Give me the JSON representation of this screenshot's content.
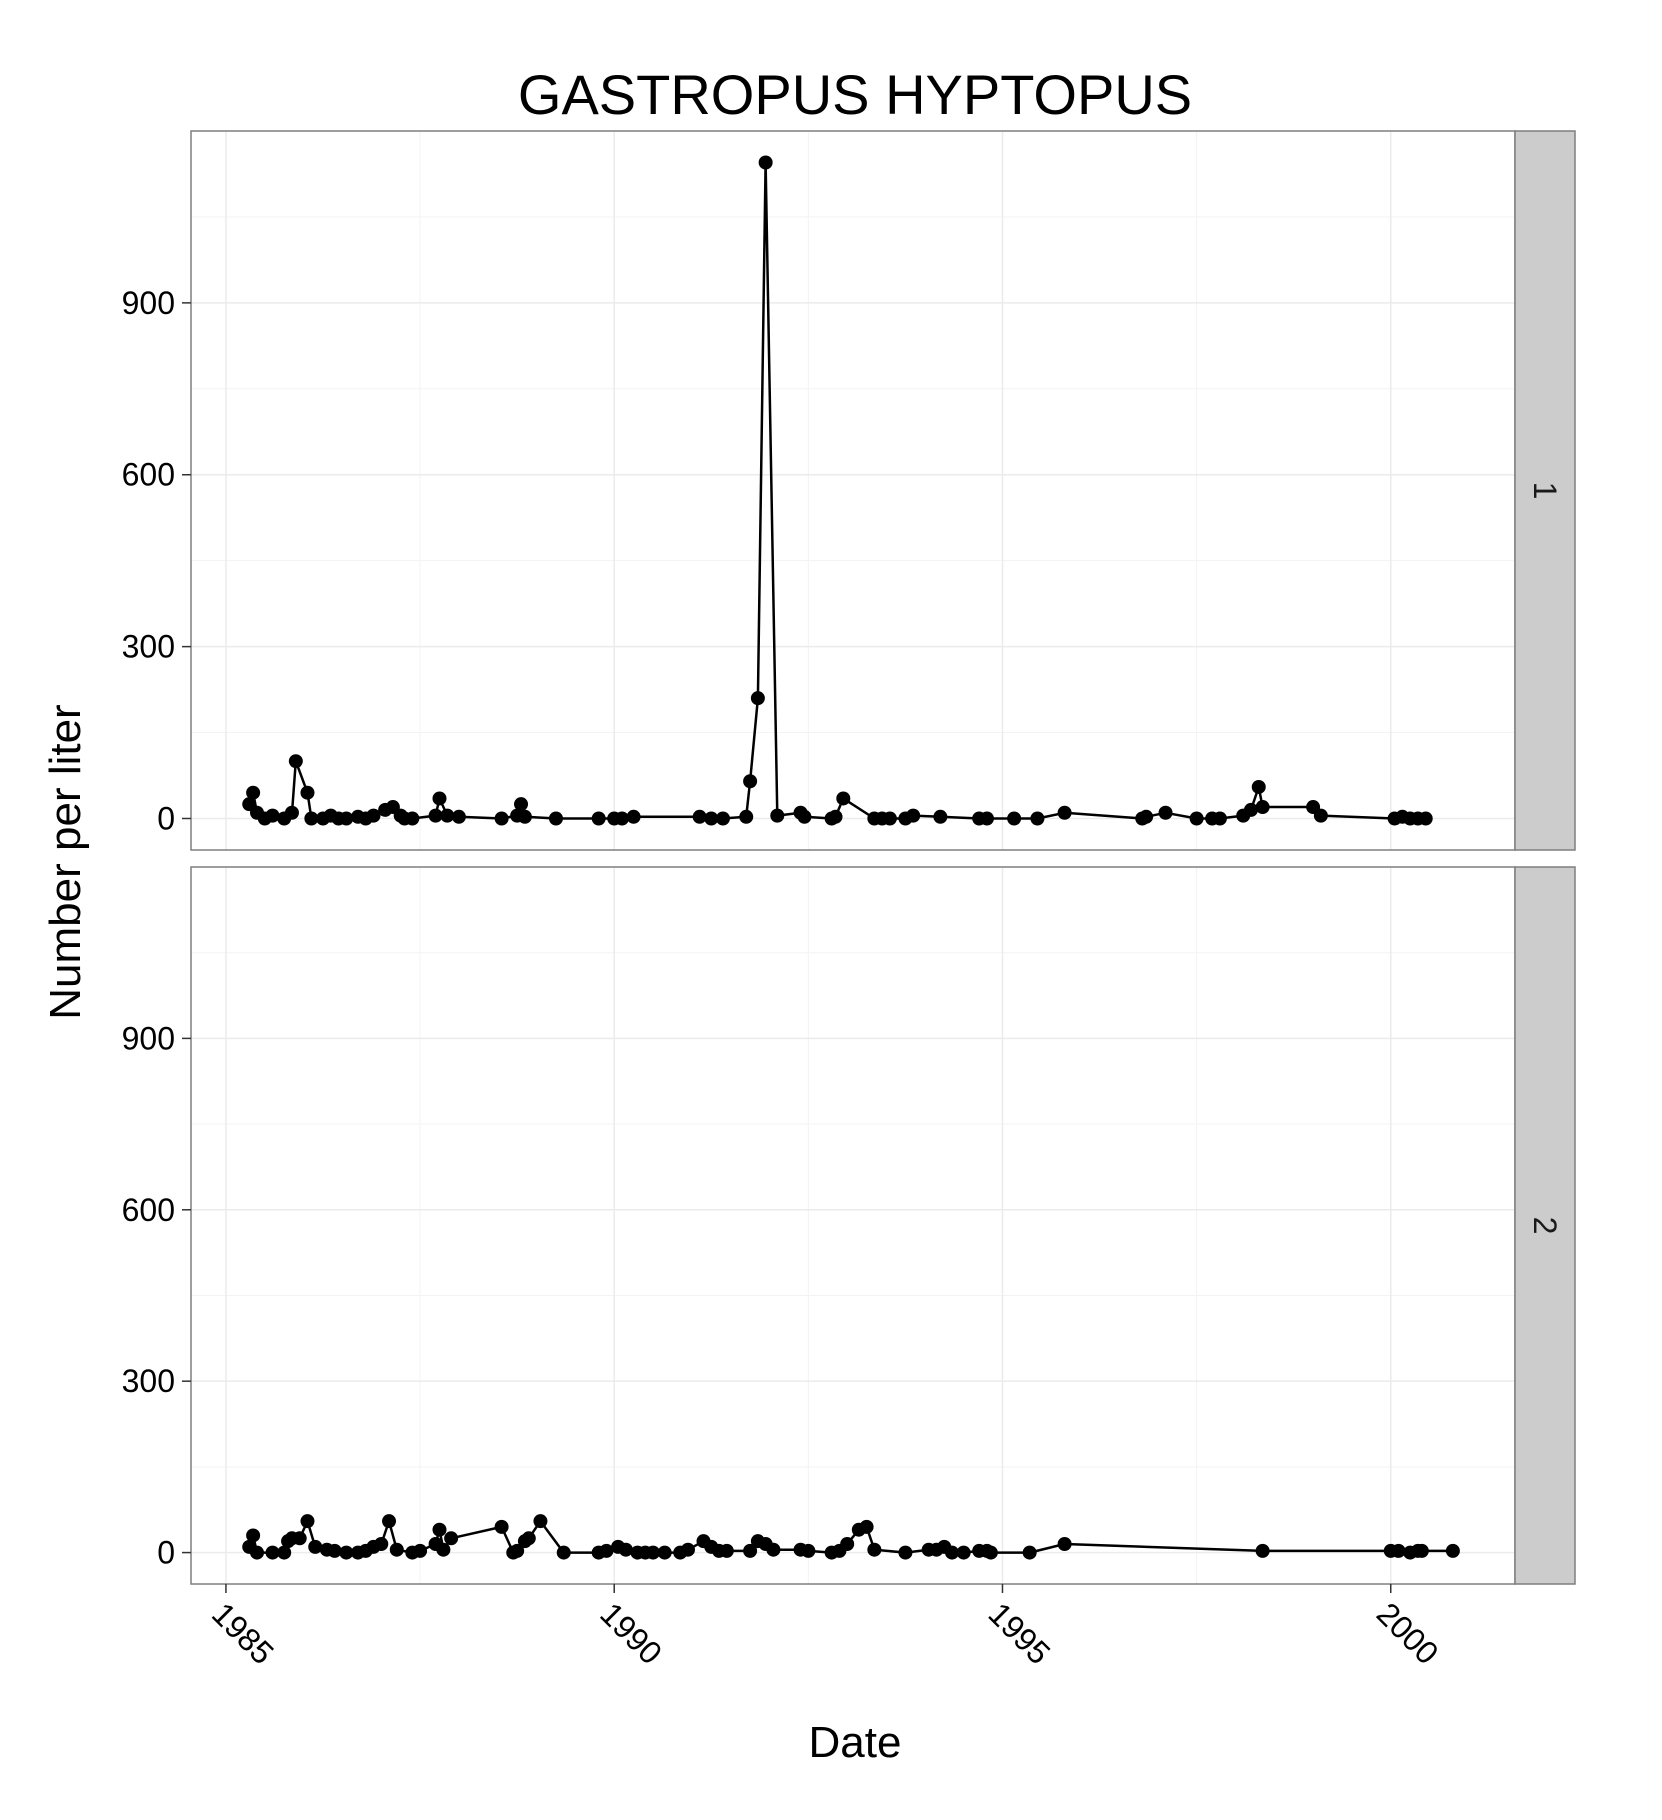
{
  "chart_data": {
    "type": "line",
    "title": "GASTROPUS HYPTOPUS",
    "xlabel": "Date",
    "ylabel": "Number per liter",
    "xlim": [
      1984.55,
      2001.6
    ],
    "ylim": [
      -55,
      1200
    ],
    "x_ticks": [
      "1985",
      "1990",
      "1995",
      "2000"
    ],
    "y_ticks": [
      "0",
      "300",
      "600",
      "900"
    ],
    "markers": true,
    "grid": true,
    "colors": {
      "line": "#000000",
      "panel_bg": "#ffffff",
      "grid": "#ebebeb",
      "strip_bg": "#cccccc",
      "border": "#7f7f7f"
    },
    "panels": [
      {
        "label": "1",
        "x": [
          1985.3,
          1985.35,
          1985.4,
          1985.5,
          1985.6,
          1985.75,
          1985.85,
          1985.9,
          1986.05,
          1986.1,
          1986.25,
          1986.35,
          1986.45,
          1986.55,
          1986.7,
          1986.8,
          1986.9,
          1987.05,
          1987.15,
          1987.25,
          1987.3,
          1987.4,
          1987.7,
          1987.75,
          1987.85,
          1988.0,
          1988.55,
          1988.75,
          1988.8,
          1988.85,
          1989.25,
          1989.8,
          1990.0,
          1990.1,
          1990.25,
          1991.1,
          1991.25,
          1991.4,
          1991.7,
          1991.75,
          1991.85,
          1991.95,
          1992.1,
          1992.4,
          1992.45,
          1992.8,
          1992.85,
          1992.95,
          1993.35,
          1993.45,
          1993.55,
          1993.75,
          1993.85,
          1994.2,
          1994.7,
          1994.8,
          1995.15,
          1995.45,
          1995.8,
          1996.8,
          1996.85,
          1997.1,
          1997.5,
          1997.7,
          1997.8,
          1998.1,
          1998.2,
          1998.3,
          1998.35,
          1999.0,
          1999.1,
          2000.05,
          2000.15,
          2000.25,
          2000.35,
          2000.45
        ],
        "y": [
          25,
          45,
          10,
          0,
          5,
          0,
          10,
          100,
          45,
          0,
          0,
          5,
          0,
          0,
          3,
          0,
          5,
          15,
          20,
          5,
          0,
          0,
          5,
          35,
          5,
          3,
          0,
          5,
          25,
          3,
          0,
          0,
          0,
          0,
          3,
          3,
          0,
          0,
          3,
          65,
          210,
          1145,
          5,
          10,
          3,
          0,
          3,
          35,
          0,
          0,
          0,
          0,
          5,
          3,
          0,
          0,
          0,
          0,
          10,
          0,
          3,
          10,
          0,
          0,
          0,
          5,
          15,
          55,
          20,
          20,
          5,
          0,
          3,
          0,
          0,
          0
        ]
      },
      {
        "label": "2",
        "x": [
          1985.3,
          1985.35,
          1985.4,
          1985.6,
          1985.75,
          1985.8,
          1985.85,
          1985.95,
          1986.05,
          1986.15,
          1986.3,
          1986.4,
          1986.55,
          1986.7,
          1986.8,
          1986.9,
          1987.0,
          1987.1,
          1987.2,
          1987.4,
          1987.5,
          1987.7,
          1987.75,
          1987.8,
          1987.9,
          1988.55,
          1988.7,
          1988.75,
          1988.85,
          1988.9,
          1989.05,
          1989.35,
          1989.8,
          1989.9,
          1990.05,
          1990.15,
          1990.3,
          1990.4,
          1990.5,
          1990.65,
          1990.85,
          1990.95,
          1991.15,
          1991.25,
          1991.35,
          1991.45,
          1991.75,
          1991.85,
          1991.95,
          1992.05,
          1992.4,
          1992.5,
          1992.8,
          1992.9,
          1993.0,
          1993.15,
          1993.25,
          1993.35,
          1993.75,
          1994.05,
          1994.15,
          1994.25,
          1994.35,
          1994.5,
          1994.7,
          1994.8,
          1994.85,
          1995.35,
          1995.8,
          1998.35,
          2000.0,
          2000.1,
          2000.25,
          2000.35,
          2000.4,
          2000.8
        ],
        "y": [
          10,
          30,
          0,
          0,
          0,
          20,
          25,
          25,
          55,
          10,
          5,
          3,
          0,
          0,
          3,
          10,
          15,
          55,
          5,
          0,
          3,
          15,
          40,
          5,
          25,
          45,
          0,
          3,
          20,
          25,
          55,
          0,
          0,
          3,
          10,
          5,
          0,
          0,
          0,
          0,
          0,
          5,
          20,
          10,
          3,
          3,
          3,
          20,
          15,
          5,
          5,
          3,
          0,
          3,
          15,
          40,
          45,
          5,
          0,
          5,
          5,
          10,
          0,
          0,
          3,
          3,
          0,
          0,
          15,
          3,
          3,
          3,
          0,
          3,
          3,
          3
        ]
      }
    ]
  }
}
